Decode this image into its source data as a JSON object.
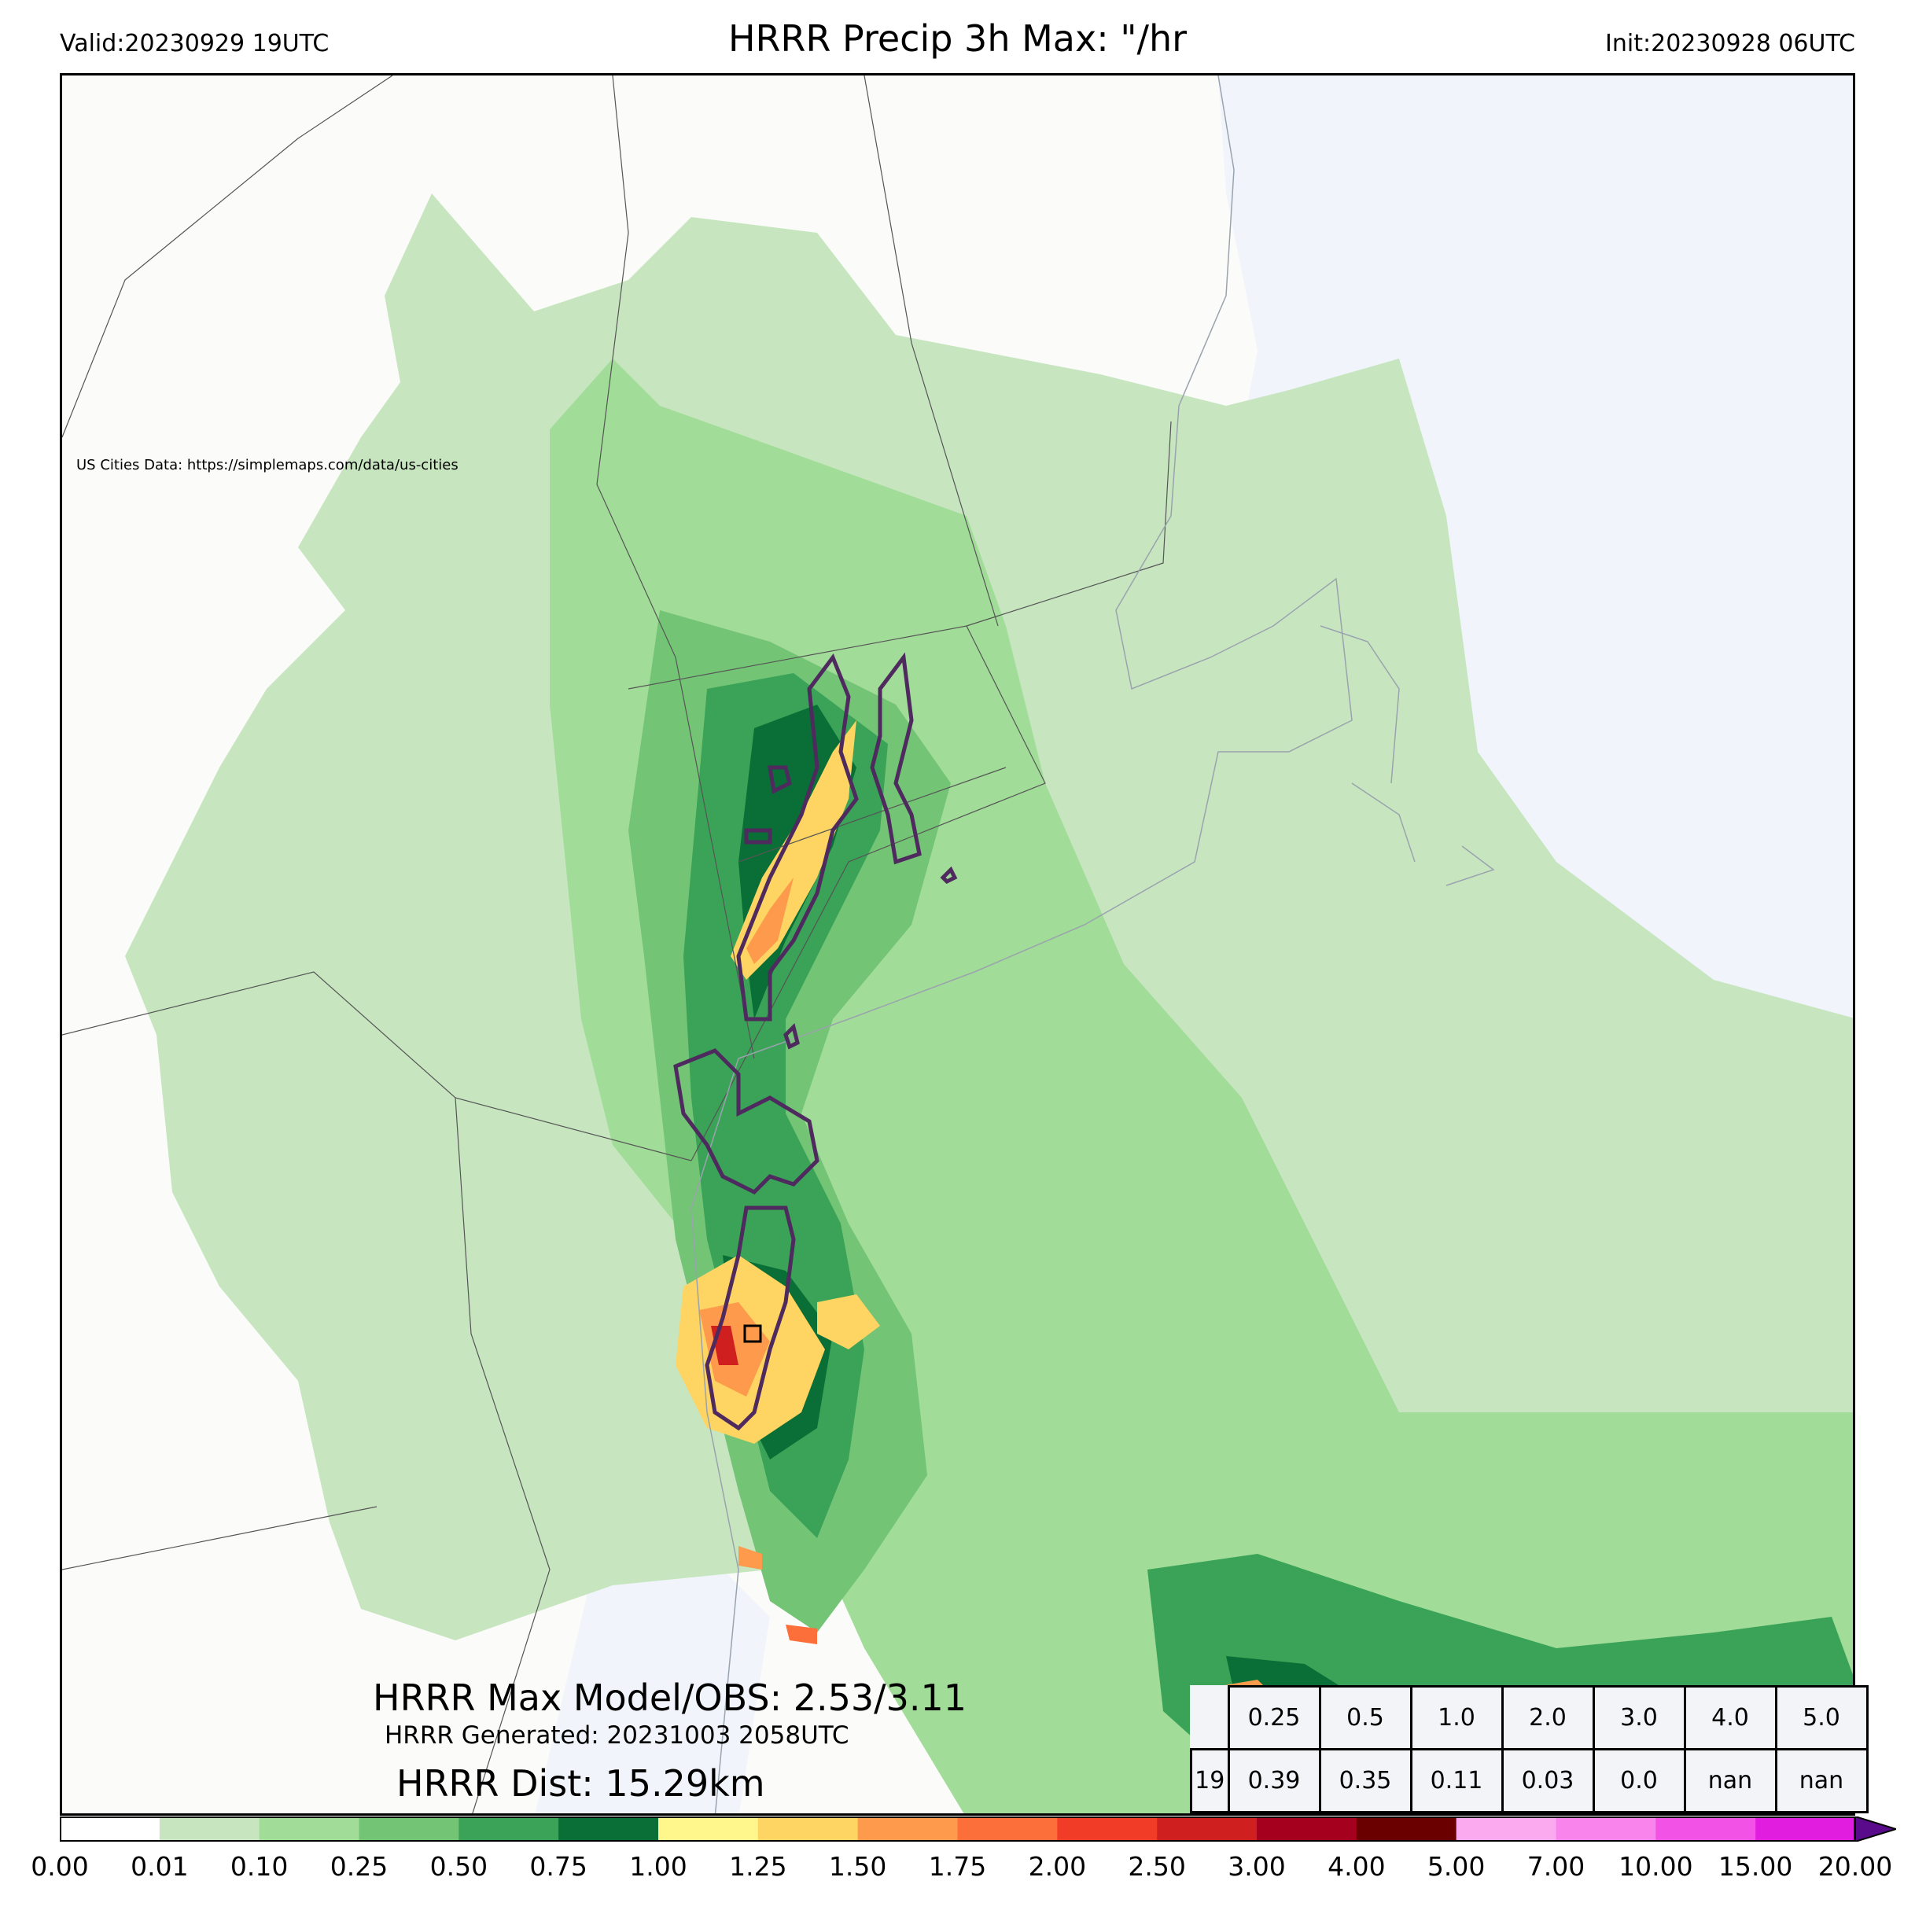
{
  "header": {
    "valid": "Valid:20230929 19UTC",
    "title": "HRRR Precip 3h Max: \"/hr",
    "init": "Init:20230928 06UTC"
  },
  "map": {
    "credit": "US Cities Data: https://simplemaps.com/data/us-cities",
    "max_line": "HRRR Max Model/OBS: 2.53/3.11",
    "generated_line": "HRRR Generated: 20231003 2058UTC",
    "dist_line": "HRRR Dist: 15.29km"
  },
  "stats_table": {
    "thresholds": [
      "0.25",
      "0.5",
      "1.0",
      "2.0",
      "3.0",
      "4.0",
      "5.0"
    ],
    "row_label": "19",
    "values": [
      "0.39",
      "0.35",
      "0.11",
      "0.03",
      "0.0",
      "nan",
      "nan"
    ]
  },
  "colorbar": {
    "ticks": [
      "0.00",
      "0.01",
      "0.10",
      "0.25",
      "0.50",
      "0.75",
      "1.00",
      "1.25",
      "1.50",
      "1.75",
      "2.00",
      "2.50",
      "3.00",
      "4.00",
      "5.00",
      "7.00",
      "10.00",
      "15.00",
      "20.00"
    ],
    "colors": [
      "#ffffff",
      "#c7e6c0",
      "#a1dc98",
      "#74c476",
      "#3aa357",
      "#0a6f36",
      "#fff68c",
      "#fed462",
      "#fd9a4c",
      "#fc6f3a",
      "#f13d28",
      "#d01f1f",
      "#a5001e",
      "#6b0000",
      "#fbaaf0",
      "#f884ec",
      "#f252e6",
      "#e11de0",
      "#a20ad6",
      "#5a0b8b"
    ]
  },
  "colors": {
    "land": "#fbfbf9",
    "water": "#f1f5fb",
    "obs_contour": "#4f2a5e"
  }
}
